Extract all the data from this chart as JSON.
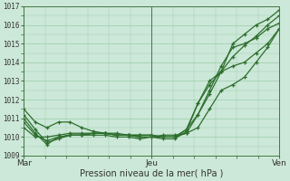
{
  "xlabel": "Pression niveau de la mer( hPa )",
  "ylim": [
    1009,
    1017
  ],
  "yticks": [
    1009,
    1010,
    1011,
    1012,
    1013,
    1014,
    1015,
    1016,
    1017
  ],
  "xtick_labels": [
    "Mar",
    "Jeu",
    "Ven"
  ],
  "xtick_positions": [
    0,
    48,
    96
  ],
  "bg_color": "#cce8d8",
  "grid_color": "#99ccaa",
  "line_color": "#2d6e2d",
  "series": [
    [
      1011.5,
      1010.8,
      1010.5,
      1010.8,
      1010.8,
      1010.5,
      1010.3,
      1010.2,
      1010.2,
      1010.1,
      1010.0,
      1010.0,
      1009.9,
      1009.9,
      1010.3,
      1011.8,
      1012.8,
      1013.5,
      1015.0,
      1015.5,
      1016.0,
      1016.3,
      1016.8
    ],
    [
      1011.2,
      1010.4,
      1009.7,
      1009.9,
      1010.1,
      1010.1,
      1010.1,
      1010.1,
      1010.0,
      1010.0,
      1009.9,
      1010.0,
      1010.1,
      1010.1,
      1010.2,
      1011.2,
      1012.3,
      1013.5,
      1014.3,
      1014.9,
      1015.4,
      1016.0,
      1016.5
    ],
    [
      1011.0,
      1010.2,
      1009.6,
      1010.0,
      1010.1,
      1010.1,
      1010.2,
      1010.2,
      1010.1,
      1010.1,
      1010.0,
      1010.0,
      1010.0,
      1010.0,
      1010.4,
      1011.2,
      1012.5,
      1013.8,
      1014.8,
      1015.0,
      1015.3,
      1015.8,
      1016.1
    ],
    [
      1010.8,
      1010.1,
      1009.8,
      1010.0,
      1010.1,
      1010.1,
      1010.2,
      1010.2,
      1010.1,
      1010.1,
      1010.1,
      1010.1,
      1010.0,
      1010.0,
      1010.4,
      1011.8,
      1013.0,
      1013.5,
      1013.8,
      1014.0,
      1014.5,
      1015.0,
      1015.8
    ],
    [
      1010.5,
      1010.0,
      1010.0,
      1010.1,
      1010.2,
      1010.2,
      1010.2,
      1010.2,
      1010.1,
      1010.1,
      1010.1,
      1010.1,
      1010.0,
      1010.0,
      1010.2,
      1010.5,
      1011.5,
      1012.5,
      1012.8,
      1013.2,
      1014.0,
      1014.8,
      1015.8
    ]
  ],
  "n_points": 23,
  "marker": "+",
  "markersize": 3,
  "linewidth": 0.9,
  "figsize": [
    3.2,
    2.0
  ],
  "dpi": 100
}
